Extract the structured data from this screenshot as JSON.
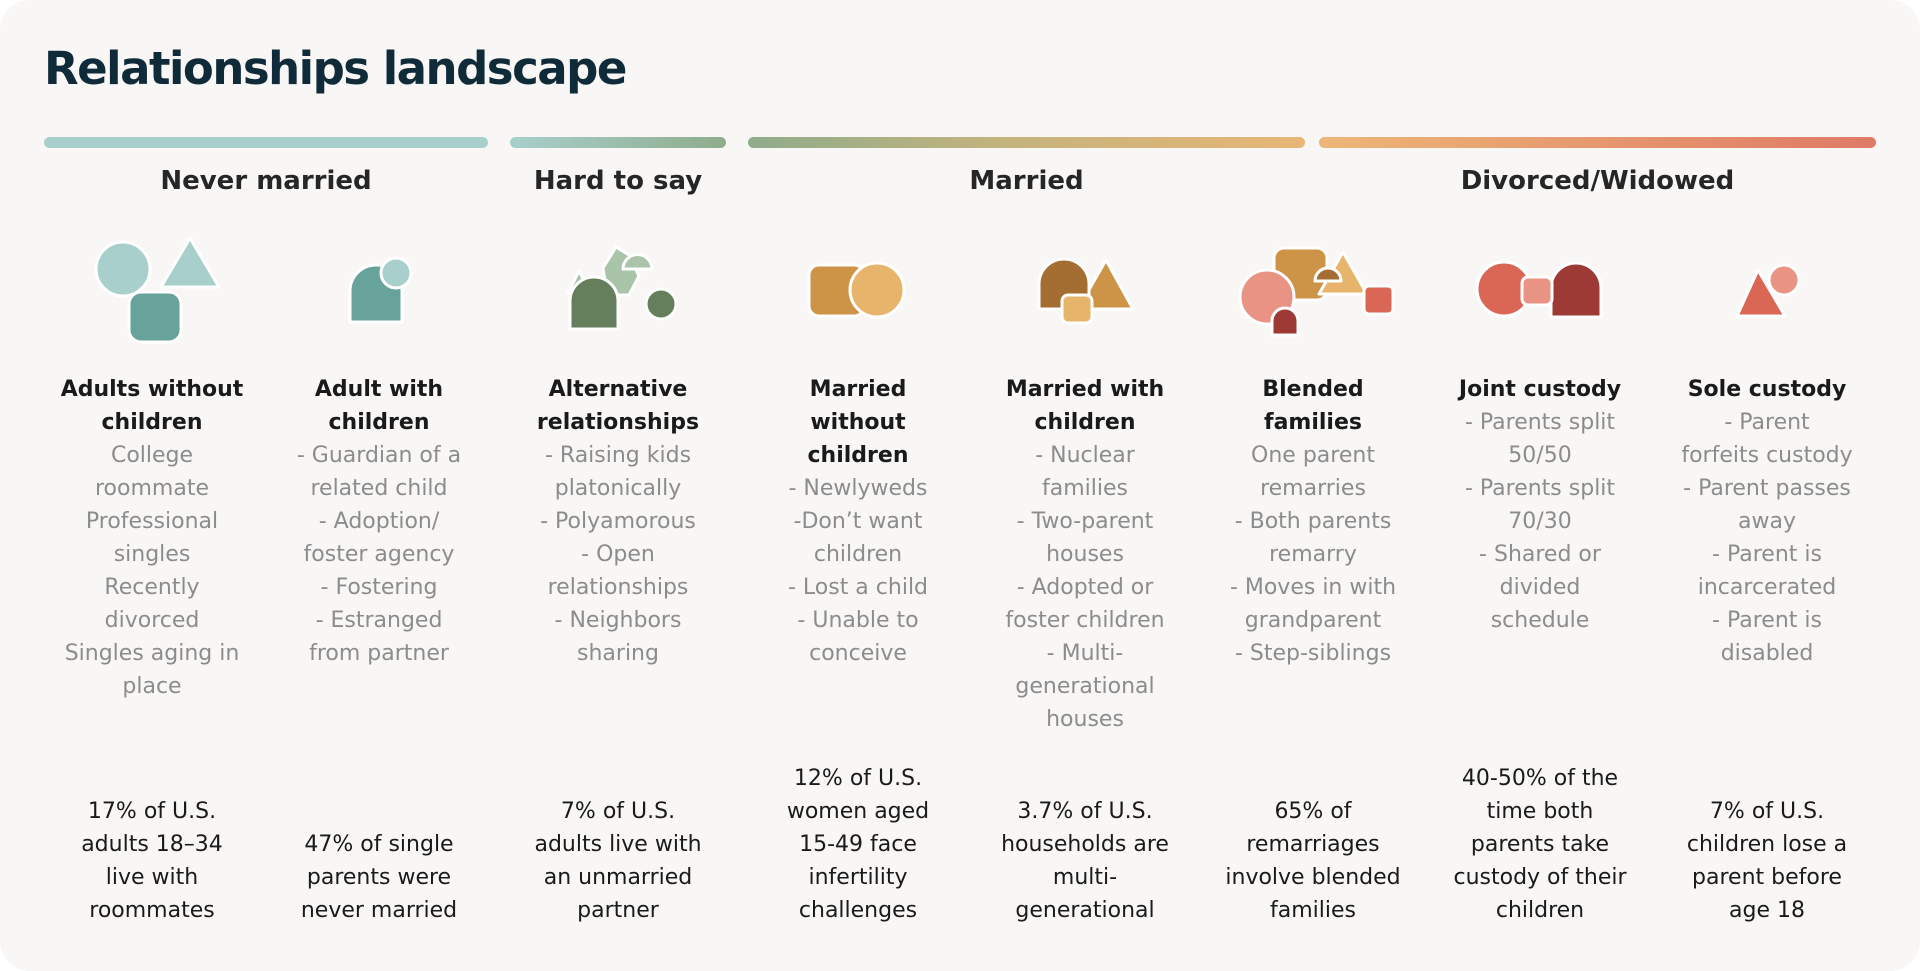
{
  "title": "Relationships landscape",
  "colors": {
    "teal_light": "#a8cfcc",
    "teal": "#68a39b",
    "sage": "#a9c4a8",
    "green_dark": "#657f5d",
    "gold": "#e6b46a",
    "amber": "#cd9448",
    "brown": "#a46e33",
    "coral": "#e89383",
    "red": "#da6656",
    "maroon": "#9e3a35"
  },
  "groups": [
    {
      "label": "Never married"
    },
    {
      "label": "Hard to say"
    },
    {
      "label": "Married"
    },
    {
      "label": "Divorced/Widowed"
    }
  ],
  "columns": [
    {
      "icon": "never-married-adults-icon",
      "head": [
        "Adults without",
        "children"
      ],
      "desc": [
        "College",
        "roommate",
        "Professional",
        "singles",
        "Recently",
        "divorced",
        "Singles aging in",
        "place"
      ],
      "stat": [
        "17% of U.S.",
        "adults 18–34",
        "live with",
        "roommates"
      ]
    },
    {
      "icon": "adult-with-children-icon",
      "head": [
        "Adult with",
        "children"
      ],
      "desc": [
        "- Guardian of a",
        "related child",
        "- Adoption/",
        "foster agency",
        "- Fostering",
        "- Estranged",
        "from partner"
      ],
      "stat": [
        "47% of single",
        "parents were",
        "never married"
      ]
    },
    {
      "icon": "alternative-relationships-icon",
      "head": [
        "Alternative",
        "relationships"
      ],
      "desc": [
        "- Raising kids",
        "platonically",
        "- Polyamorous",
        "- Open",
        "relationships",
        "- Neighbors",
        "sharing"
      ],
      "stat": [
        "7% of U.S.",
        "adults live with",
        "an unmarried",
        "partner"
      ]
    },
    {
      "icon": "married-without-children-icon",
      "head": [
        "Married",
        "without",
        "children"
      ],
      "desc": [
        "- Newlyweds",
        "-Don’t want",
        "children",
        "- Lost a child",
        "- Unable to",
        "conceive"
      ],
      "stat": [
        "12% of U.S.",
        "women aged",
        "15-49 face",
        "infertility",
        "challenges"
      ]
    },
    {
      "icon": "married-with-children-icon",
      "head": [
        "Married with",
        "children"
      ],
      "desc": [
        "- Nuclear",
        "families",
        "- Two-parent",
        "houses",
        "- Adopted or",
        "foster children",
        "- Multi-",
        "generational",
        "houses"
      ],
      "stat": [
        "3.7% of U.S.",
        "households are",
        "multi-",
        "generational"
      ]
    },
    {
      "icon": "blended-families-icon",
      "head": [
        "Blended",
        "families"
      ],
      "desc": [
        "One parent",
        "remarries",
        "- Both parents",
        "remarry",
        "- Moves in with",
        "grandparent",
        "- Step-siblings"
      ],
      "stat": [
        "65% of",
        "remarriages",
        "involve blended",
        "families"
      ]
    },
    {
      "icon": "joint-custody-icon",
      "head": [
        "Joint custody"
      ],
      "desc": [
        "- Parents split",
        "50/50",
        "- Parents split",
        "70/30",
        "- Shared or",
        "divided",
        "schedule"
      ],
      "stat": [
        "40-50% of the",
        "time both",
        "parents take",
        "custody of their",
        "children"
      ]
    },
    {
      "icon": "sole-custody-icon",
      "head": [
        "Sole custody"
      ],
      "desc": [
        "- Parent",
        "forfeits custody",
        "- Parent passes",
        "away",
        "- Parent is",
        "incarcerated",
        "- Parent is",
        "disabled"
      ],
      "stat": [
        "7% of U.S.",
        "children lose a",
        "parent before",
        "age 18"
      ]
    }
  ]
}
